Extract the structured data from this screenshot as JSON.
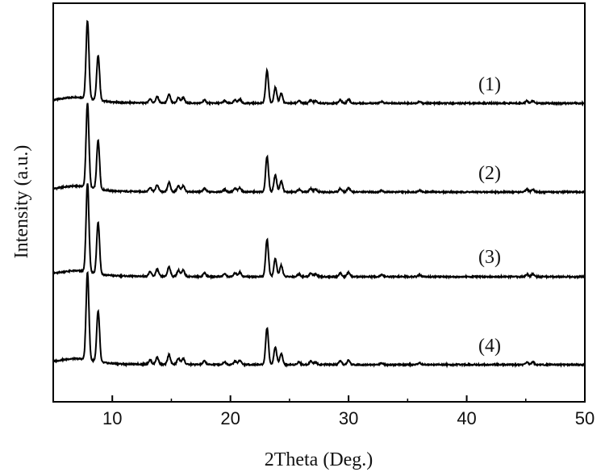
{
  "chart_data": {
    "type": "line",
    "title": "",
    "xlabel": "2Theta (Deg.)",
    "ylabel": "Intensity (a.u.)",
    "xlim": [
      5,
      50
    ],
    "xticks": [
      10,
      20,
      30,
      40,
      50
    ],
    "yticks": [],
    "grid": false,
    "legend": "none",
    "line_color": "#000000",
    "common_peaks": [
      {
        "x": 7.9,
        "rel": 1.0
      },
      {
        "x": 8.8,
        "rel": 0.58
      },
      {
        "x": 13.2,
        "rel": 0.05
      },
      {
        "x": 13.8,
        "rel": 0.08
      },
      {
        "x": 14.8,
        "rel": 0.11
      },
      {
        "x": 15.6,
        "rel": 0.07
      },
      {
        "x": 16.0,
        "rel": 0.07
      },
      {
        "x": 17.8,
        "rel": 0.04
      },
      {
        "x": 19.5,
        "rel": 0.03
      },
      {
        "x": 20.4,
        "rel": 0.04
      },
      {
        "x": 20.8,
        "rel": 0.05
      },
      {
        "x": 23.1,
        "rel": 0.42
      },
      {
        "x": 23.8,
        "rel": 0.2
      },
      {
        "x": 24.3,
        "rel": 0.13
      },
      {
        "x": 25.8,
        "rel": 0.03
      },
      {
        "x": 26.8,
        "rel": 0.04
      },
      {
        "x": 27.2,
        "rel": 0.03
      },
      {
        "x": 29.3,
        "rel": 0.04
      },
      {
        "x": 30.0,
        "rel": 0.05
      },
      {
        "x": 32.8,
        "rel": 0.02
      },
      {
        "x": 36.0,
        "rel": 0.02
      },
      {
        "x": 45.1,
        "rel": 0.03
      },
      {
        "x": 45.6,
        "rel": 0.03
      }
    ],
    "series": [
      {
        "label": "(1)"
      },
      {
        "label": "(2)"
      },
      {
        "label": "(3)"
      },
      {
        "label": "(4)"
      }
    ]
  }
}
